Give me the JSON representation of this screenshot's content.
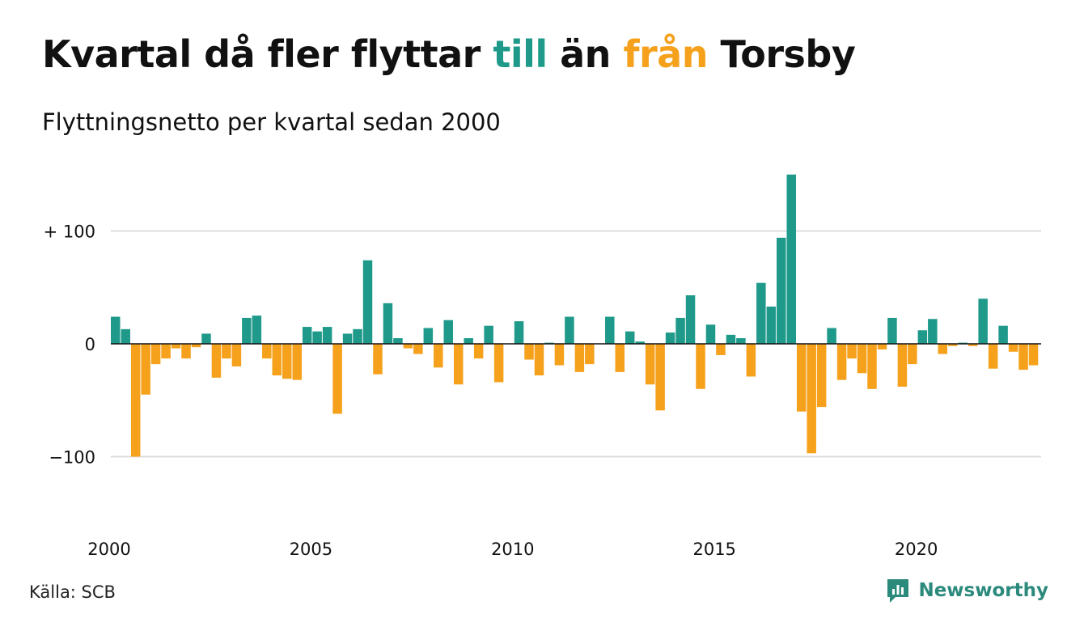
{
  "title": {
    "part1": "Kvartal då fler flyttar ",
    "till": "till",
    "part2": " än ",
    "fran": "från",
    "part3": " Torsby"
  },
  "subtitle": "Flyttningsnetto per kvartal sedan 2000",
  "source": "Källa: SCB",
  "brand": "Newsworthy",
  "colors": {
    "positive": "#1f9a8a",
    "negative": "#f5a11c",
    "grid": "#dddddd",
    "brand": "#2b8a7c"
  },
  "chart_data": {
    "type": "bar",
    "title": "Kvartal då fler flyttar till än från Torsby",
    "subtitle": "Flyttningsnetto per kvartal sedan 2000",
    "start_year": 2000,
    "quarters_per_year": 4,
    "ylim": [
      -100,
      150
    ],
    "y_ticks": [
      {
        "value": 100,
        "label": "+ 100"
      },
      {
        "value": 0,
        "label": "0"
      },
      {
        "value": -100,
        "label": "−100"
      }
    ],
    "x_ticks": [
      {
        "year": 2000,
        "label": "2000"
      },
      {
        "year": 2005,
        "label": "2005"
      },
      {
        "year": 2010,
        "label": "2010"
      },
      {
        "year": 2015,
        "label": "2015"
      },
      {
        "year": 2020,
        "label": "2020"
      }
    ],
    "values": [
      24,
      13,
      -100,
      -45,
      -18,
      -13,
      -4,
      -13,
      -3,
      9,
      -30,
      -13,
      -20,
      23,
      25,
      -13,
      -28,
      -31,
      -32,
      15,
      11,
      15,
      -62,
      9,
      13,
      74,
      -27,
      36,
      5,
      -4,
      -9,
      14,
      -21,
      21,
      -36,
      5,
      -13,
      16,
      -34,
      0,
      20,
      -14,
      -28,
      1,
      -19,
      24,
      -25,
      -18,
      0,
      24,
      -25,
      11,
      2,
      -36,
      -59,
      10,
      23,
      43,
      -40,
      17,
      -10,
      8,
      5,
      -29,
      54,
      33,
      94,
      150,
      -60,
      -97,
      -56,
      14,
      -32,
      -13,
      -26,
      -40,
      -5,
      23,
      -38,
      -18,
      12,
      22,
      -9,
      -2,
      1,
      -2,
      40,
      -22,
      16,
      -7,
      -23,
      -19
    ]
  }
}
